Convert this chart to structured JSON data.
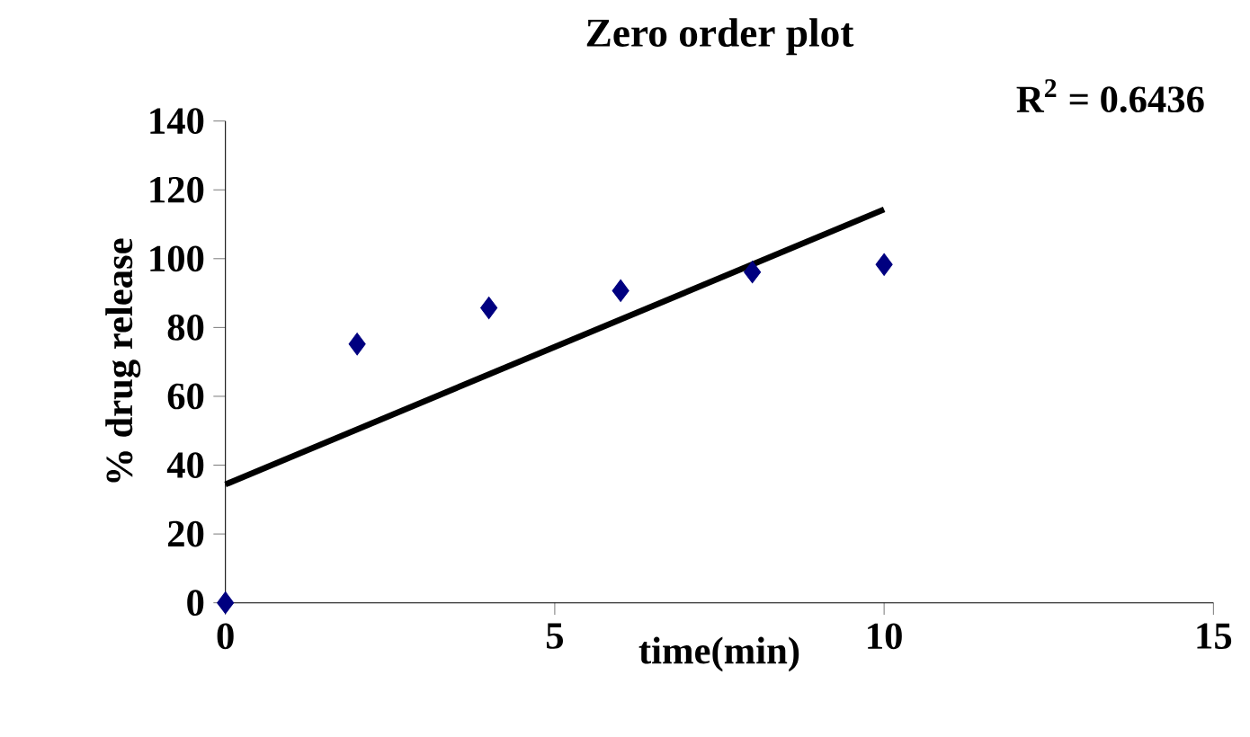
{
  "chart_data": {
    "type": "scatter",
    "title": "Zero order plot",
    "xlabel": "time(min)",
    "ylabel": "% drug release",
    "annotations": [
      "R$^{2}$ = 0.6436"
    ],
    "series": [
      {
        "color": "#000080",
        "x": [
          0,
          2,
          4,
          6,
          8,
          10
        ],
        "values": [
          0,
          75.2,
          85.7,
          90.7,
          96.1,
          98.3
        ]
      },
      {
        "type": "line",
        "color": "#000000",
        "marker": "none",
        "x": [
          0,
          10
        ],
        "values": [
          34.4,
          114.3
        ]
      }
    ],
    "xlim": [
      0,
      15
    ],
    "ylim": [
      0,
      140
    ],
    "xticks": [
      0,
      5,
      10,
      15
    ],
    "yticks": [
      0,
      20,
      40,
      60,
      80,
      100,
      120,
      140
    ],
    "marker": "diamond"
  }
}
